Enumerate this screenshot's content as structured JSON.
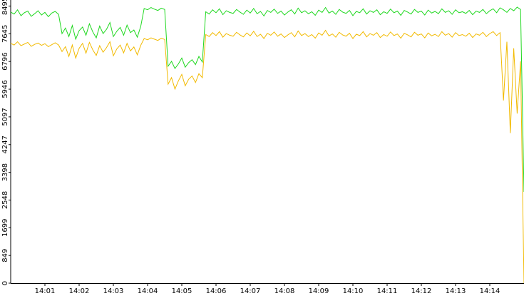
{
  "chart_data": {
    "type": "line",
    "x": [
      840,
      840.1,
      840.2,
      840.3,
      840.4,
      840.5,
      840.6,
      840.7,
      840.8,
      840.9,
      841,
      841.1,
      841.2,
      841.3,
      841.4,
      841.5,
      841.6,
      841.7,
      841.8,
      841.9,
      842,
      842.1,
      842.2,
      842.3,
      842.4,
      842.5,
      842.6,
      842.7,
      842.8,
      842.9,
      843,
      843.1,
      843.2,
      843.3,
      843.4,
      843.5,
      843.6,
      843.7,
      843.8,
      843.9,
      844,
      844.1,
      844.2,
      844.3,
      844.4,
      844.5,
      844.6,
      844.7,
      844.8,
      844.9,
      845,
      845.1,
      845.2,
      845.3,
      845.4,
      845.5,
      845.6,
      845.7,
      845.8,
      845.9,
      846,
      846.1,
      846.2,
      846.3,
      846.4,
      846.5,
      846.6,
      846.7,
      846.8,
      846.9,
      847,
      847.1,
      847.2,
      847.3,
      847.4,
      847.5,
      847.6,
      847.7,
      847.8,
      847.9,
      848,
      848.1,
      848.2,
      848.3,
      848.4,
      848.5,
      848.6,
      848.7,
      848.8,
      848.9,
      849,
      849.1,
      849.2,
      849.3,
      849.4,
      849.5,
      849.6,
      849.7,
      849.8,
      849.9,
      850,
      850.1,
      850.2,
      850.3,
      850.4,
      850.5,
      850.6,
      850.7,
      850.8,
      850.9,
      851,
      851.1,
      851.2,
      851.3,
      851.4,
      851.5,
      851.6,
      851.7,
      851.8,
      851.9,
      852,
      852.1,
      852.2,
      852.3,
      852.4,
      852.5,
      852.6,
      852.7,
      852.8,
      852.9,
      853,
      853.1,
      853.2,
      853.3,
      853.4,
      853.5,
      853.6,
      853.7,
      853.8,
      853.9,
      854,
      854.1,
      854.2,
      854.3,
      854.4,
      854.5,
      854.6,
      854.7,
      854.8,
      854.9,
      855
    ],
    "series": [
      {
        "color": "#1fd81f",
        "values": [
          8310,
          8250,
          8380,
          8200,
          8290,
          8340,
          8180,
          8260,
          8350,
          8220,
          8300,
          8170,
          8280,
          8330,
          8240,
          7650,
          7820,
          7560,
          7900,
          7480,
          7740,
          7850,
          7600,
          7950,
          7700,
          7520,
          7880,
          7650,
          7780,
          7990,
          7560,
          7720,
          7840,
          7600,
          7910,
          7680,
          7760,
          7540,
          7870,
          8420,
          8380,
          8450,
          8400,
          8360,
          8430,
          8390,
          6650,
          6800,
          6580,
          6720,
          6900,
          6620,
          6760,
          6850,
          6700,
          6950,
          6780,
          8320,
          8250,
          8380,
          8290,
          8410,
          8230,
          8350,
          8300,
          8270,
          8390,
          8310,
          8240,
          8370,
          8280,
          8420,
          8260,
          8330,
          8190,
          8360,
          8300,
          8400,
          8270,
          8340,
          8220,
          8310,
          8380,
          8250,
          8430,
          8290,
          8350,
          8260,
          8320,
          8210,
          8370,
          8300,
          8450,
          8280,
          8340,
          8240,
          8390,
          8310,
          8270,
          8360,
          8200,
          8330,
          8290,
          8410,
          8250,
          8350,
          8300,
          8380,
          8230,
          8320,
          8270,
          8400,
          8290,
          8340,
          8210,
          8360,
          8310,
          8250,
          8390,
          8300,
          8340,
          8220,
          8370,
          8280,
          8330,
          8260,
          8410,
          8300,
          8350,
          8240,
          8380,
          8290,
          8320,
          8270,
          8360,
          8230,
          8340,
          8300,
          8390,
          8260,
          8350,
          8410,
          8290,
          8440,
          8380,
          8300,
          8420,
          8350,
          8460,
          8390,
          2800
        ]
      },
      {
        "color": "#f2ba00",
        "values": [
          7350,
          7300,
          7400,
          7280,
          7330,
          7380,
          7260,
          7320,
          7360,
          7290,
          7340,
          7250,
          7310,
          7370,
          7300,
          7100,
          7250,
          6950,
          7300,
          6900,
          7200,
          7350,
          7050,
          7380,
          7150,
          6980,
          7280,
          7080,
          7220,
          7400,
          6970,
          7180,
          7300,
          7060,
          7350,
          7120,
          7240,
          7000,
          7290,
          7500,
          7460,
          7520,
          7480,
          7440,
          7510,
          7470,
          6100,
          6300,
          5950,
          6200,
          6400,
          6050,
          6250,
          6350,
          6150,
          6420,
          6300,
          7620,
          7560,
          7680,
          7590,
          7710,
          7540,
          7650,
          7600,
          7570,
          7690,
          7610,
          7550,
          7670,
          7580,
          7720,
          7560,
          7630,
          7500,
          7660,
          7600,
          7700,
          7570,
          7640,
          7530,
          7610,
          7680,
          7550,
          7730,
          7590,
          7650,
          7560,
          7620,
          7510,
          7670,
          7600,
          7750,
          7580,
          7640,
          7540,
          7690,
          7610,
          7570,
          7660,
          7500,
          7630,
          7590,
          7710,
          7550,
          7650,
          7600,
          7680,
          7530,
          7620,
          7570,
          7700,
          7590,
          7640,
          7510,
          7660,
          7610,
          7550,
          7690,
          7600,
          7640,
          7520,
          7670,
          7580,
          7630,
          7560,
          7710,
          7600,
          7650,
          7540,
          7680,
          7590,
          7620,
          7570,
          7660,
          7530,
          7640,
          7600,
          7690,
          7560,
          7650,
          7710,
          7590,
          7680,
          5600,
          7400,
          4600,
          7200,
          5200,
          6800,
          0
        ]
      }
    ],
    "xlim": [
      840,
      855
    ],
    "xticks": [
      {
        "value": 841,
        "label": "14:01"
      },
      {
        "value": 842,
        "label": "14:02"
      },
      {
        "value": 843,
        "label": "14:03"
      },
      {
        "value": 844,
        "label": "14:04"
      },
      {
        "value": 845,
        "label": "14:05"
      },
      {
        "value": 846,
        "label": "14:06"
      },
      {
        "value": 847,
        "label": "14:07"
      },
      {
        "value": 848,
        "label": "14:08"
      },
      {
        "value": 849,
        "label": "14:09"
      },
      {
        "value": 850,
        "label": "14:10"
      },
      {
        "value": 851,
        "label": "14:11"
      },
      {
        "value": 852,
        "label": "14:12"
      },
      {
        "value": 853,
        "label": "14:13"
      },
      {
        "value": 854,
        "label": "14:14"
      }
    ],
    "ylim": [
      0,
      8680
    ],
    "yticks": [
      0,
      849,
      1699,
      2548,
      3398,
      4247,
      5097,
      5946,
      6796,
      7645,
      8495
    ]
  }
}
